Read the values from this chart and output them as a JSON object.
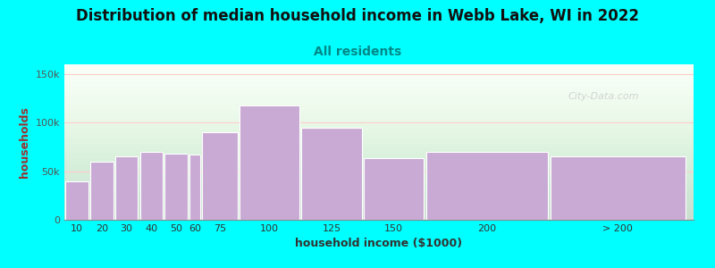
{
  "title": "Distribution of median household income in Webb Lake, WI in 2022",
  "subtitle": "All residents",
  "xlabel": "household income ($1000)",
  "ylabel": "households",
  "background_color": "#00FFFF",
  "bar_color": "#c8aad4",
  "bar_edge_color": "#ffffff",
  "title_fontsize": 12,
  "subtitle_fontsize": 10,
  "subtitle_color": "#008888",
  "axis_label_fontsize": 9,
  "tick_label_fontsize": 8,
  "ylabel_color": "#993333",
  "categories": [
    "10",
    "20",
    "30",
    "40",
    "50",
    "60",
    "75",
    "100",
    "125",
    "150",
    "200",
    "> 200"
  ],
  "values": [
    40000,
    60000,
    65000,
    70000,
    68000,
    67000,
    90000,
    118000,
    95000,
    63000,
    70000,
    65000
  ],
  "left_edges": [
    5,
    15,
    25,
    35,
    45,
    55,
    60,
    75,
    100,
    125,
    150,
    200
  ],
  "bar_widths": [
    10,
    10,
    10,
    10,
    10,
    5,
    15,
    25,
    25,
    25,
    50,
    55
  ],
  "ylim": [
    0,
    160000
  ],
  "yticks": [
    0,
    50000,
    100000,
    150000
  ],
  "ytick_labels": [
    "0",
    "50k",
    "100k",
    "150k"
  ],
  "xlim": [
    5,
    258
  ],
  "watermark_text": "City-Data.com",
  "grid_color": "#ffcccc",
  "plot_bg_color": "#f8fff8"
}
